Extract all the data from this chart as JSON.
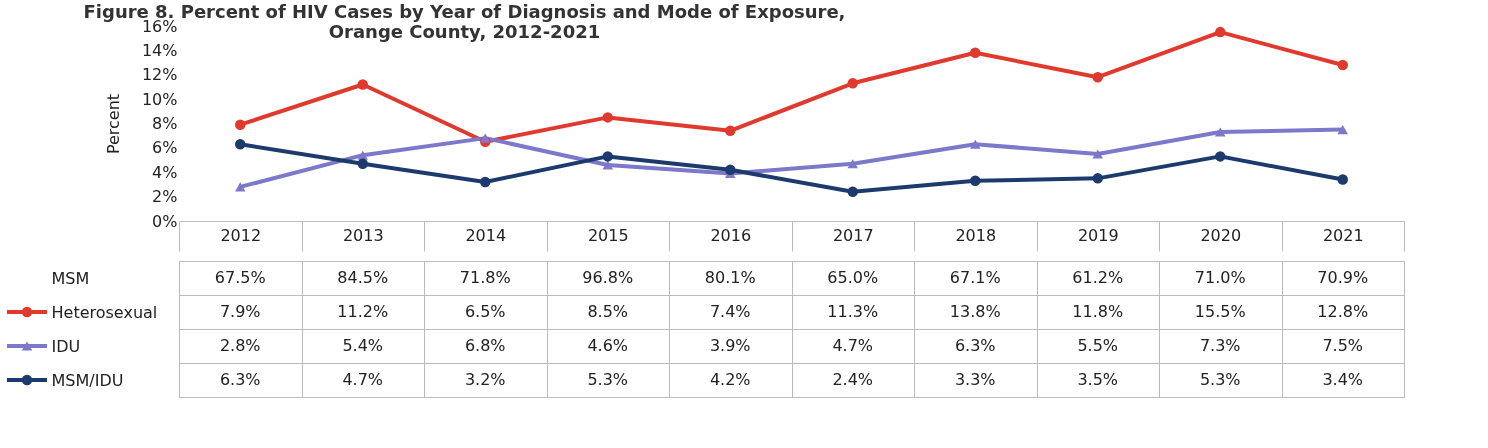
{
  "chart_data": {
    "type": "line",
    "title": "Figure 8. Percent of HIV Cases by Year of Diagnosis and Mode of Exposure,\nOrange County, 2012-2021",
    "ylabel": "Percent",
    "categories": [
      "2012",
      "2013",
      "2014",
      "2015",
      "2016",
      "2017",
      "2018",
      "2019",
      "2020",
      "2021"
    ],
    "ylim": [
      0,
      16
    ],
    "yticks": [
      {
        "value": 0,
        "label": "0%"
      },
      {
        "value": 2,
        "label": "2%"
      },
      {
        "value": 4,
        "label": "4%"
      },
      {
        "value": 6,
        "label": "6%"
      },
      {
        "value": 8,
        "label": "8%"
      },
      {
        "value": 10,
        "label": "10%"
      },
      {
        "value": 12,
        "label": "12%"
      },
      {
        "value": 14,
        "label": "14%"
      },
      {
        "value": 16,
        "label": "16%"
      }
    ],
    "grid": false,
    "legend": "bottom left",
    "line_style": "solid",
    "series": [
      {
        "name": "MSM",
        "values": [
          null,
          null,
          null,
          null,
          null,
          null,
          null,
          null,
          null,
          null
        ],
        "value_labels": [
          "67.5%",
          "84.5%",
          "71.8%",
          "96.8%",
          "80.1%",
          "65.0%",
          "67.1%",
          "61.2%",
          "71.0%",
          "70.9%"
        ]
      },
      {
        "name": "Heterosexual",
        "color": "#e03a2e",
        "marker": "circle",
        "values": [
          7.9,
          11.2,
          6.5,
          8.5,
          7.4,
          11.3,
          13.8,
          11.8,
          15.5,
          12.8
        ],
        "value_labels": [
          "7.9%",
          "11.2%",
          "6.5%",
          "8.5%",
          "7.4%",
          "11.3%",
          "13.8%",
          "11.8%",
          "15.5%",
          "12.8%"
        ]
      },
      {
        "name": "IDU",
        "color": "#7c78ca",
        "marker": "triangle",
        "values": [
          2.8,
          5.4,
          6.8,
          4.6,
          3.9,
          4.7,
          6.3,
          5.5,
          7.3,
          7.5
        ],
        "value_labels": [
          "2.8%",
          "5.4%",
          "6.8%",
          "4.6%",
          "3.9%",
          "4.7%",
          "6.3%",
          "5.5%",
          "7.3%",
          "7.5%"
        ]
      },
      {
        "name": "MSM/IDU",
        "color": "#1d3a6c",
        "marker": "circle",
        "values": [
          6.3,
          4.7,
          3.2,
          5.3,
          4.2,
          2.4,
          3.3,
          3.5,
          5.3,
          3.4
        ],
        "value_labels": [
          "6.3%",
          "4.7%",
          "3.2%",
          "5.3%",
          "4.2%",
          "2.4%",
          "3.3%",
          "3.5%",
          "5.3%",
          "3.4%"
        ]
      }
    ]
  }
}
